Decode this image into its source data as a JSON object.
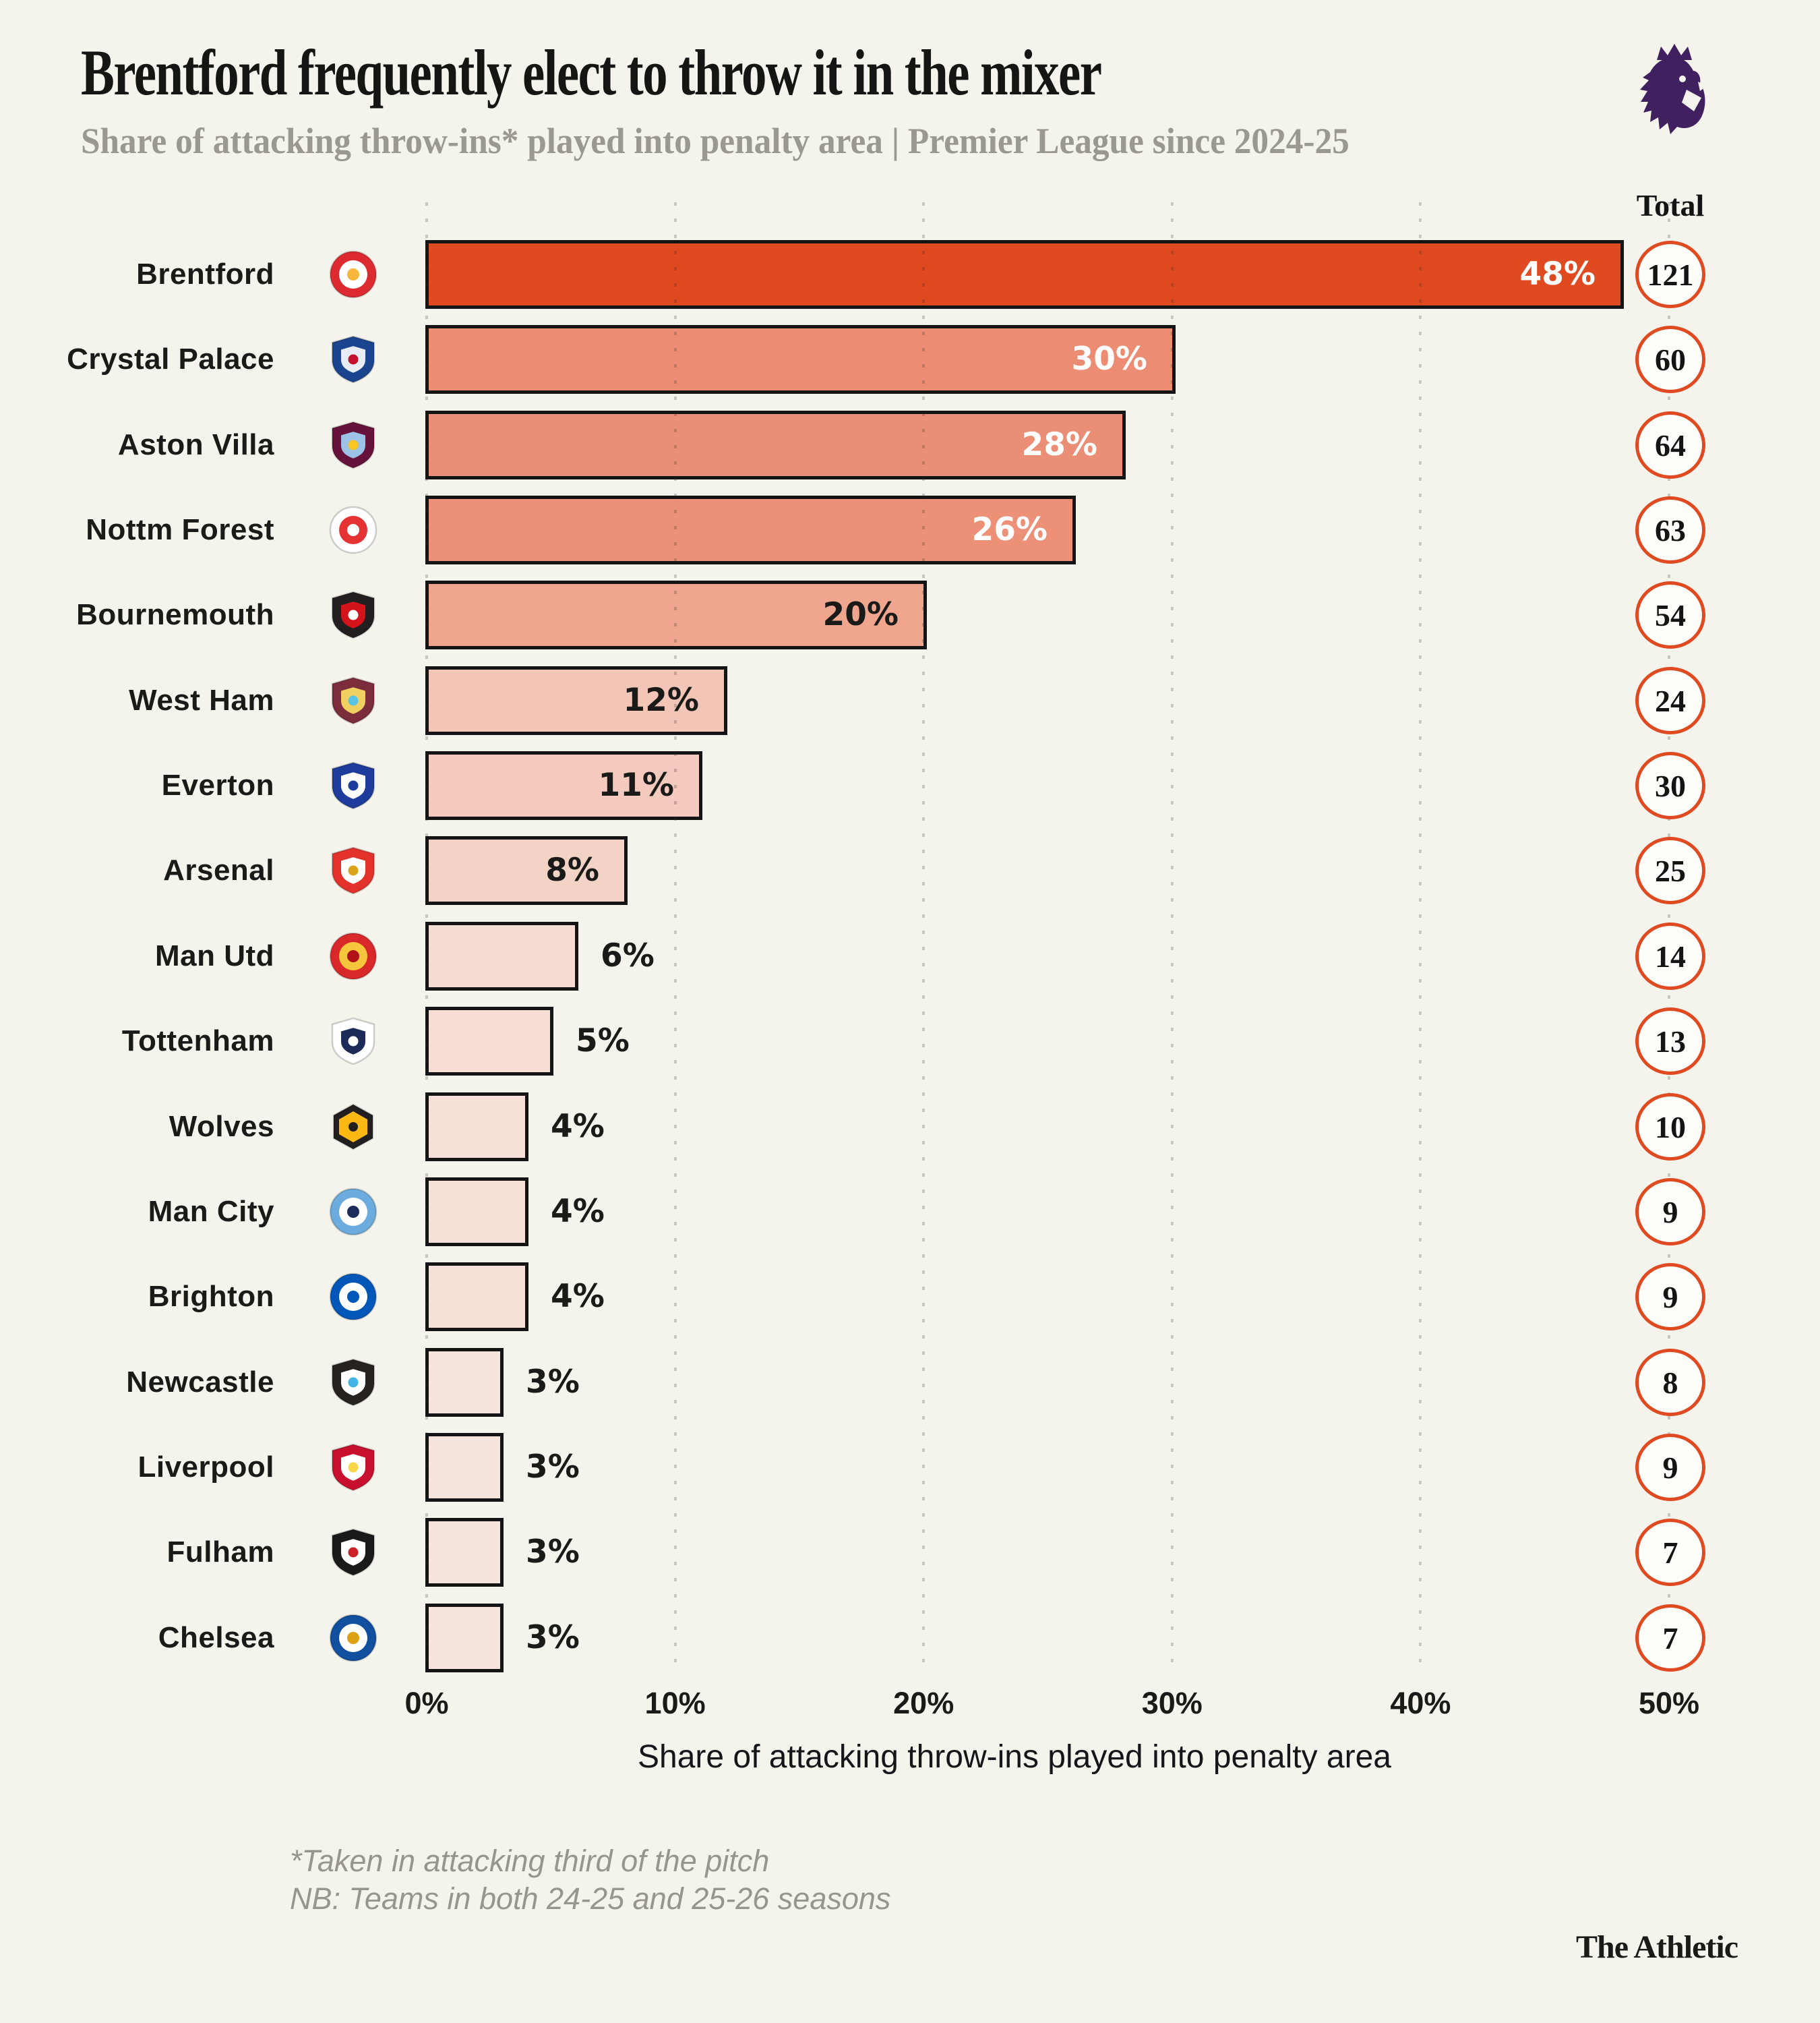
{
  "header": {
    "title": "Brentford frequently elect to throw it in the mixer",
    "subtitle": "Share of attacking throw-ins* played into penalty area | Premier League since 2024-25",
    "logo": "premier-league-lion",
    "logo_color": "#41205F"
  },
  "colors": {
    "background": "#F4F3EC",
    "ink": "#1A1A18",
    "bar_border": "#141414",
    "subtitle_gray": "#9A988F",
    "footnote_gray": "#97958D",
    "accent_orange": "#DF4A21",
    "value_label_light": "#FFFFFF"
  },
  "chart_data": {
    "type": "bar",
    "orientation": "horizontal",
    "title": "Brentford frequently elect to throw it in the mixer",
    "subtitle": "Share of attacking throw-ins* played into penalty area | Premier League since 2024-25",
    "xlabel": "Share of attacking throw-ins played into penalty area",
    "xlim": [
      0,
      50
    ],
    "x_ticks": [
      "0%",
      "10%",
      "20%",
      "30%",
      "40%",
      "50%"
    ],
    "x_tick_values": [
      0,
      10,
      20,
      30,
      40,
      50
    ],
    "grid": "dotted-vertical",
    "total_column_header": "Total",
    "categories": [
      "Brentford",
      "Crystal Palace",
      "Aston Villa",
      "Nottm Forest",
      "Bournemouth",
      "West Ham",
      "Everton",
      "Arsenal",
      "Man Utd",
      "Tottenham",
      "Wolves",
      "Man City",
      "Brighton",
      "Newcastle",
      "Liverpool",
      "Fulham",
      "Chelsea"
    ],
    "values": [
      48,
      30,
      28,
      26,
      20,
      12,
      11,
      8,
      6,
      5,
      4,
      4,
      4,
      3,
      3,
      3,
      3
    ],
    "totals": [
      121,
      60,
      64,
      63,
      54,
      24,
      30,
      25,
      14,
      13,
      10,
      9,
      9,
      8,
      9,
      7,
      7
    ],
    "teams": [
      {
        "name": "Brentford",
        "value": 48,
        "label": "48%",
        "total": 121,
        "bar_color": "#E04A21",
        "label_color": "#FFFFFF",
        "label_inside": true,
        "badge": {
          "shape": "circle",
          "bg": "#DD2A30",
          "fg": "#FFFFFF",
          "accent": "#F6B73C"
        }
      },
      {
        "name": "Crystal Palace",
        "value": 30,
        "label": "30%",
        "total": 60,
        "bar_color": "#EB8C73",
        "label_color": "#FFFFFF",
        "label_inside": true,
        "badge": {
          "shape": "shield",
          "bg": "#1B458F",
          "fg": "#E8EDF5",
          "accent": "#C4122E"
        }
      },
      {
        "name": "Aston Villa",
        "value": 28,
        "label": "28%",
        "total": 64,
        "bar_color": "#EB8E76",
        "label_color": "#FFFFFF",
        "label_inside": true,
        "badge": {
          "shape": "shield",
          "bg": "#67123A",
          "fg": "#9DC2E8",
          "accent": "#F9C623"
        }
      },
      {
        "name": "Nottm Forest",
        "value": 26,
        "label": "26%",
        "total": 63,
        "bar_color": "#EC9078",
        "label_color": "#FFFFFF",
        "label_inside": true,
        "badge": {
          "shape": "circle",
          "bg": "#FFFFFF",
          "fg": "#E53233",
          "accent": "#FFFFFF"
        }
      },
      {
        "name": "Bournemouth",
        "value": 20,
        "label": "20%",
        "total": 54,
        "bar_color": "#EFA58E",
        "label_color": "#1A1A18",
        "label_inside": true,
        "badge": {
          "shape": "shield",
          "bg": "#231F20",
          "fg": "#D3151B",
          "accent": "#FFFFFF"
        }
      },
      {
        "name": "West Ham",
        "value": 12,
        "label": "12%",
        "total": 24,
        "bar_color": "#F2C5B7",
        "label_color": "#1A1A18",
        "label_inside": true,
        "badge": {
          "shape": "shield",
          "bg": "#7C2C3B",
          "fg": "#F0D060",
          "accent": "#5BC2E7"
        }
      },
      {
        "name": "Everton",
        "value": 11,
        "label": "11%",
        "total": 30,
        "bar_color": "#F3CABD",
        "label_color": "#1A1A18",
        "label_inside": true,
        "badge": {
          "shape": "shield",
          "bg": "#1E3C9C",
          "fg": "#FFFFFF",
          "accent": "#1E3C9C"
        }
      },
      {
        "name": "Arsenal",
        "value": 8,
        "label": "8%",
        "total": 25,
        "bar_color": "#F4D3C7",
        "label_color": "#1A1A18",
        "label_inside": true,
        "badge": {
          "shape": "shield",
          "bg": "#E3322C",
          "fg": "#FFFFFF",
          "accent": "#D9A31A"
        }
      },
      {
        "name": "Man Utd",
        "value": 6,
        "label": "6%",
        "total": 14,
        "bar_color": "#F5DBD1",
        "label_color": "#1A1A18",
        "label_inside": false,
        "badge": {
          "shape": "circle",
          "bg": "#D8282A",
          "fg": "#F6C73C",
          "accent": "#B01215"
        }
      },
      {
        "name": "Tottenham",
        "value": 5,
        "label": "5%",
        "total": 13,
        "bar_color": "#F6DED5",
        "label_color": "#1A1A18",
        "label_inside": false,
        "badge": {
          "shape": "shield",
          "bg": "#FFFFFF",
          "fg": "#1C2A57",
          "accent": "#FFFFFF"
        }
      },
      {
        "name": "Wolves",
        "value": 4,
        "label": "4%",
        "total": 10,
        "bar_color": "#F6E0D8",
        "label_color": "#1A1A18",
        "label_inside": false,
        "badge": {
          "shape": "hex",
          "bg": "#231F20",
          "fg": "#FDB913",
          "accent": "#231F20"
        }
      },
      {
        "name": "Man City",
        "value": 4,
        "label": "4%",
        "total": 9,
        "bar_color": "#F6E1D9",
        "label_color": "#1A1A18",
        "label_inside": false,
        "badge": {
          "shape": "circle",
          "bg": "#6CABDD",
          "fg": "#FFFFFF",
          "accent": "#1C2C5B"
        }
      },
      {
        "name": "Brighton",
        "value": 4,
        "label": "4%",
        "total": 9,
        "bar_color": "#F6E1D9",
        "label_color": "#1A1A18",
        "label_inside": false,
        "badge": {
          "shape": "circle",
          "bg": "#0057B8",
          "fg": "#FFFFFF",
          "accent": "#0057B8"
        }
      },
      {
        "name": "Newcastle",
        "value": 3,
        "label": "3%",
        "total": 8,
        "bar_color": "#F7E4DC",
        "label_color": "#1A1A18",
        "label_inside": false,
        "badge": {
          "shape": "shield",
          "bg": "#26221F",
          "fg": "#FFFFFF",
          "accent": "#41B6E6"
        }
      },
      {
        "name": "Liverpool",
        "value": 3,
        "label": "3%",
        "total": 9,
        "bar_color": "#F7E4DC",
        "label_color": "#1A1A18",
        "label_inside": false,
        "badge": {
          "shape": "shield",
          "bg": "#C8102E",
          "fg": "#FFFFFF",
          "accent": "#F9D64A"
        }
      },
      {
        "name": "Fulham",
        "value": 3,
        "label": "3%",
        "total": 7,
        "bar_color": "#F7E5DD",
        "label_color": "#1A1A18",
        "label_inside": false,
        "badge": {
          "shape": "shield",
          "bg": "#1A1A1A",
          "fg": "#FFFFFF",
          "accent": "#CC2229"
        }
      },
      {
        "name": "Chelsea",
        "value": 3,
        "label": "3%",
        "total": 7,
        "bar_color": "#F7E5DD",
        "label_color": "#1A1A18",
        "label_inside": false,
        "badge": {
          "shape": "circle",
          "bg": "#10509E",
          "fg": "#FFFFFF",
          "accent": "#DBA111"
        }
      }
    ]
  },
  "footnotes": {
    "line1": "*Taken in attacking third of the pitch",
    "line2": "NB: Teams in both 24-25 and 25-26 seasons"
  },
  "branding": {
    "wordmark": "The Athletic"
  }
}
